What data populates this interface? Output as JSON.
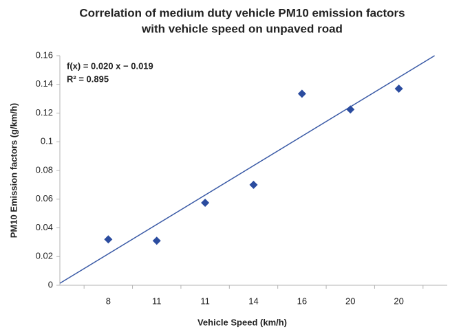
{
  "chart_data": {
    "type": "scatter",
    "title": [
      "Correlation of medium duty vehicle PM10 emission factors",
      "with vehicle speed on unpaved road"
    ],
    "x_label": "Vehicle Speed (km/h)",
    "y_label": "PM10 Emission factors (g/km/h)",
    "annotations": [
      "f(x) = 0.020 x − 0.019",
      "R² = 0.895"
    ],
    "categories": [
      "8",
      "11",
      "11",
      "14",
      "16",
      "20",
      "20"
    ],
    "series": [
      {
        "name": "PM10",
        "color": "#2b4c9f",
        "values": [
          0.032,
          0.031,
          0.0575,
          0.07,
          0.1335,
          0.1225,
          0.137
        ]
      }
    ],
    "trendline": {
      "type": "linear",
      "color": "#3a5aa6"
    },
    "ylim": [
      0,
      0.16
    ],
    "yticks": [
      0,
      0.02,
      0.04,
      0.06,
      0.08,
      0.1,
      0.12,
      0.14,
      0.16
    ],
    "grid": false
  }
}
